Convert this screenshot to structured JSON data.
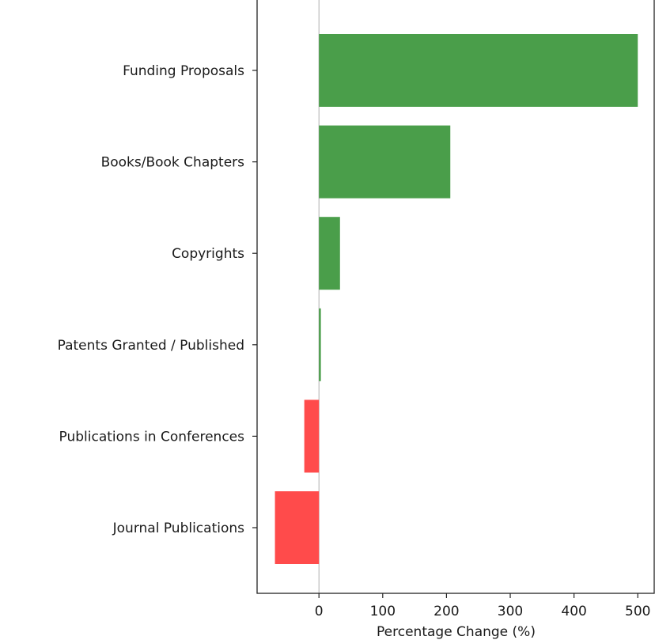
{
  "chart_data": {
    "type": "bar",
    "orientation": "horizontal",
    "categories": [
      "Funding Proposals",
      "Books/Book Chapters",
      "Copyrights",
      "Patents Granted / Published",
      "Publications in Conferences",
      "Journal Publications"
    ],
    "values": [
      500,
      206,
      33,
      3,
      -23,
      -69
    ],
    "xlabel": "Percentage Change (%)",
    "ylabel": "",
    "xlim": [
      -97,
      527
    ],
    "xticks": [
      0,
      100,
      200,
      300,
      400,
      500
    ],
    "xtick_labels": [
      "0",
      "100",
      "200",
      "300",
      "400",
      "500"
    ],
    "grid": false,
    "zero_line": true,
    "colors": {
      "positive": "#4a9e4a",
      "negative": "#ff4b4b",
      "axis": "#222222",
      "zero_line": "#b0b0b0"
    }
  }
}
